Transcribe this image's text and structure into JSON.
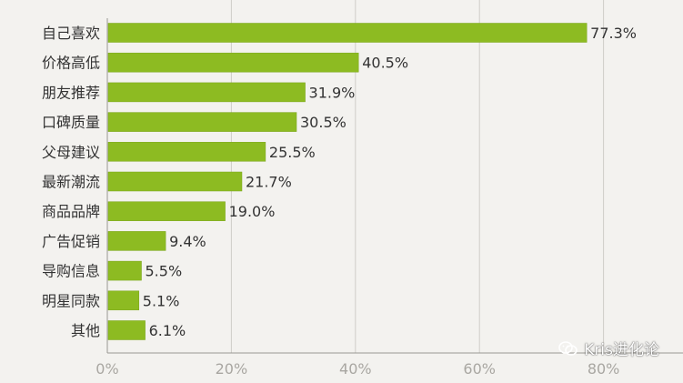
{
  "chart_data": {
    "type": "bar",
    "orientation": "horizontal",
    "categories": [
      "自己喜欢",
      "价格高低",
      "朋友推荐",
      "口碑质量",
      "父母建议",
      "最新潮流",
      "商品品牌",
      "广告促销",
      "导购信息",
      "明星同款",
      "其他"
    ],
    "values": [
      77.3,
      40.5,
      31.9,
      30.5,
      25.5,
      21.7,
      19.0,
      9.4,
      5.5,
      5.1,
      6.1
    ],
    "value_labels": [
      "77.3%",
      "40.5%",
      "31.9%",
      "30.5%",
      "25.5%",
      "21.7%",
      "19.0%",
      "9.4%",
      "5.5%",
      "5.1%",
      "6.1%"
    ],
    "xlim": [
      0,
      80
    ],
    "xticks": [
      0,
      20,
      40,
      60,
      80
    ],
    "xtick_labels": [
      "0%",
      "20%",
      "40%",
      "60%",
      "80%"
    ],
    "grid": true,
    "legend": "none",
    "title": "",
    "xlabel": "",
    "ylabel": ""
  },
  "colors": {
    "bar": "#8dbb22",
    "bar_edge": "#7aa51a",
    "grid": "#cfcdc8",
    "axis": "#9a9893",
    "tick_label": "#a9a7a2",
    "category_label": "#333333",
    "value_label": "#333333",
    "background": "#f3f2ef"
  },
  "watermark": {
    "text": "Kris进化论",
    "icon": "wechat-icon"
  }
}
